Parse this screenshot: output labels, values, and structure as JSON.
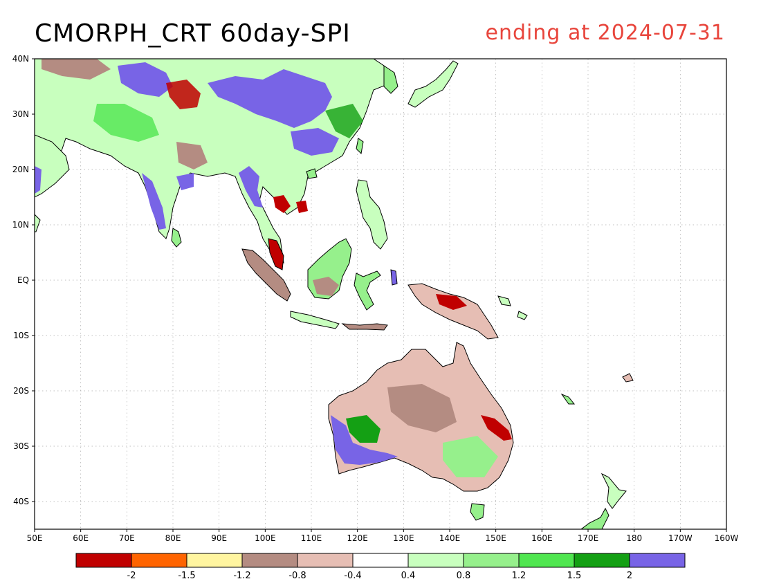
{
  "title": {
    "main": "CMORPH_CRT 60day-SPI",
    "subtitle": "ending at 2024-07-31"
  },
  "map": {
    "lon_labels": [
      "50E",
      "60E",
      "70E",
      "80E",
      "90E",
      "100E",
      "110E",
      "120E",
      "130E",
      "140E",
      "150E",
      "160E",
      "170E",
      "180",
      "170W",
      "160W"
    ],
    "lat_labels": [
      "40N",
      "30N",
      "20N",
      "10N",
      "EQ",
      "10S",
      "20S",
      "30S",
      "40S"
    ],
    "lon_range": [
      50,
      200
    ],
    "lat_range": [
      -45,
      40
    ],
    "grid": true
  },
  "colorbar": {
    "colors": [
      "#c00000",
      "#ff6400",
      "#fff5a0",
      "#b48c82",
      "#e6beb4",
      "#ffffff",
      "#c8ffbe",
      "#96f08c",
      "#50e650",
      "#14a014",
      "#7864e6"
    ],
    "labels": [
      "-2",
      "-1.5",
      "-1.2",
      "-0.8",
      "-0.4",
      "0.4",
      "0.8",
      "1.2",
      "1.5",
      "2"
    ]
  },
  "colors": {
    "land_outline": "#000000",
    "grid": "#aaaaaa",
    "title_right": "#e8453c"
  }
}
